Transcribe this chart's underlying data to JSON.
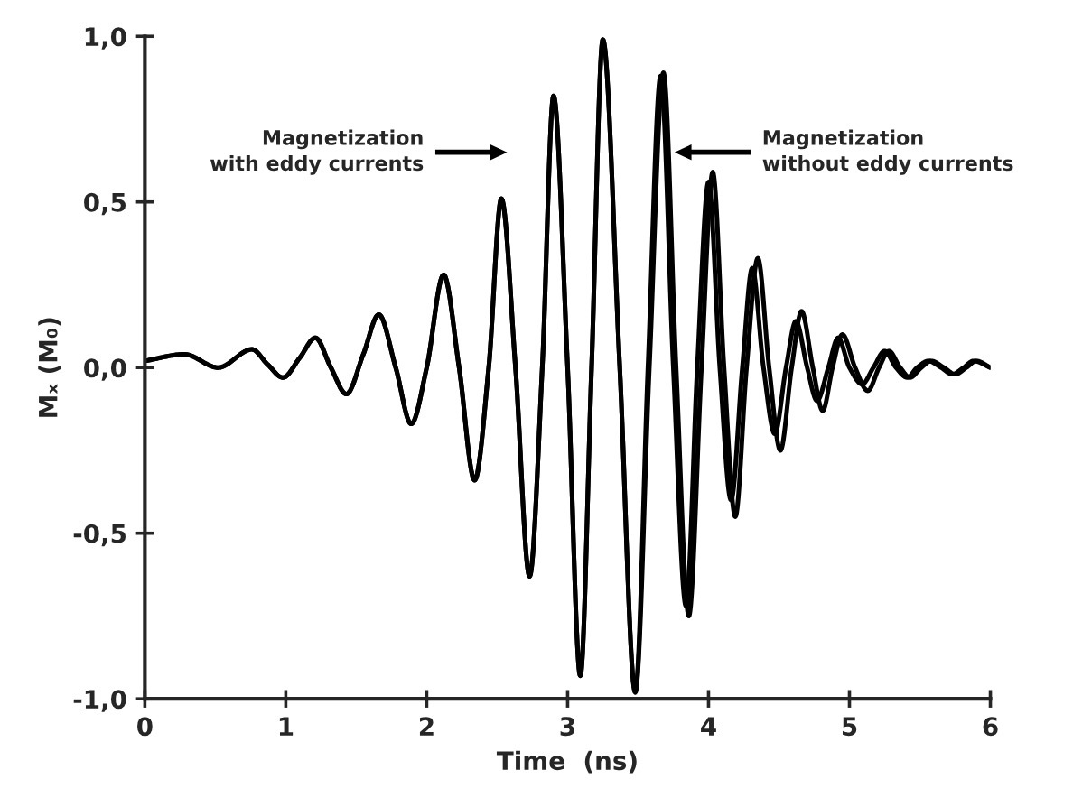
{
  "chart_data": {
    "type": "line",
    "xlabel": "Time  (ns)",
    "ylabel": "Mₓ (M₀)",
    "xlim": [
      0,
      6
    ],
    "xticks": [
      0,
      1,
      2,
      3,
      4,
      5,
      6
    ],
    "ylim": [
      -1.0,
      1.0
    ],
    "yticks": [
      {
        "value": -1.0,
        "label": "-1,0"
      },
      {
        "value": -0.5,
        "label": "-0,5"
      },
      {
        "value": 0.0,
        "label": "0,0"
      },
      {
        "value": 0.5,
        "label": "0,5"
      },
      {
        "value": 1.0,
        "label": "1,0"
      }
    ],
    "grid": false,
    "legend": false,
    "line_style": "solid",
    "series": [
      {
        "color": "#000000",
        "x": [
          0,
          0.28,
          0.52,
          0.76,
          0.87,
          0.98,
          1.1,
          1.21,
          1.32,
          1.43,
          1.55,
          1.66,
          1.78,
          1.89,
          2.0,
          2.12,
          2.23,
          2.34,
          2.44,
          2.53,
          2.63,
          2.73,
          2.82,
          2.9,
          3.0,
          3.09,
          3.17,
          3.25,
          3.37,
          3.48,
          3.58,
          3.68,
          3.77,
          3.86,
          3.95,
          4.03,
          4.11,
          4.19,
          4.27,
          4.35,
          4.43,
          4.51,
          4.59,
          4.66,
          4.74,
          4.81,
          4.88,
          4.95,
          5.04,
          5.13,
          5.21,
          5.28,
          5.36,
          5.43,
          5.51,
          5.58,
          5.67,
          5.75,
          5.83,
          5.9,
          6.0
        ],
        "values": [
          0.02,
          0.04,
          0.0,
          0.055,
          0.01,
          -0.03,
          0.03,
          0.09,
          0.0,
          -0.08,
          0.04,
          0.16,
          0.0,
          -0.17,
          0.0,
          0.28,
          0.0,
          -0.34,
          0.0,
          0.51,
          0.0,
          -0.63,
          0.0,
          0.82,
          0.0,
          -0.93,
          0.0,
          0.99,
          0.0,
          -0.98,
          0.0,
          0.89,
          0.0,
          -0.75,
          0.0,
          0.59,
          0.0,
          -0.45,
          0.0,
          0.33,
          0.0,
          -0.25,
          0.0,
          0.17,
          0.0,
          -0.13,
          0.0,
          0.1,
          0.0,
          -0.07,
          0.0,
          0.05,
          0.0,
          -0.03,
          0.0,
          0.02,
          0.0,
          -0.02,
          0.0,
          0.02,
          0.0
        ]
      },
      {
        "color": "#000000",
        "x": [
          0,
          0.28,
          0.52,
          0.76,
          0.87,
          0.98,
          1.1,
          1.21,
          1.32,
          1.43,
          1.55,
          1.66,
          1.78,
          1.89,
          2.0,
          2.12,
          2.23,
          2.34,
          2.44,
          2.53,
          2.63,
          2.73,
          2.82,
          2.9,
          3.0,
          3.09,
          3.17,
          3.25,
          3.37,
          3.48,
          3.57,
          3.66,
          3.75,
          3.84,
          3.92,
          4.0,
          4.08,
          4.16,
          4.24,
          4.31,
          4.39,
          4.47,
          4.55,
          4.62,
          4.7,
          4.77,
          4.85,
          4.92,
          5.0,
          5.09,
          5.17,
          5.25,
          5.33,
          5.41,
          5.48,
          5.56,
          5.65,
          5.73,
          5.81,
          5.88,
          6.0
        ],
        "values": [
          0.02,
          0.04,
          0.0,
          0.055,
          0.01,
          -0.03,
          0.03,
          0.09,
          0.0,
          -0.08,
          0.04,
          0.16,
          0.0,
          -0.17,
          0.0,
          0.28,
          0.0,
          -0.34,
          0.0,
          0.51,
          0.0,
          -0.63,
          0.0,
          0.82,
          0.0,
          -0.93,
          0.0,
          0.99,
          0.0,
          -0.98,
          0.0,
          0.88,
          0.0,
          -0.72,
          0.0,
          0.56,
          0.0,
          -0.4,
          0.0,
          0.3,
          0.0,
          -0.2,
          0.0,
          0.14,
          0.0,
          -0.1,
          0.0,
          0.09,
          0.0,
          -0.05,
          0.0,
          0.05,
          0.0,
          -0.03,
          0.0,
          0.02,
          0.0,
          -0.02,
          0.0,
          0.02,
          0.0
        ]
      }
    ],
    "annotations": [
      "Magnetization\nwith eddy currents",
      "Magnetization\nwithout eddy currents"
    ]
  }
}
